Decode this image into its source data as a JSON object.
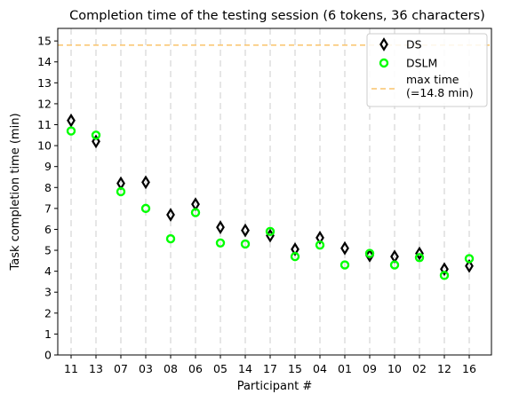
{
  "chart_data": {
    "type": "scatter",
    "title": "Completion time of the testing session (6 tokens, 36 characters)",
    "xlabel": "Participant #",
    "ylabel": "Task completion time (min)",
    "categories": [
      "11",
      "13",
      "07",
      "03",
      "08",
      "06",
      "05",
      "14",
      "17",
      "15",
      "04",
      "01",
      "09",
      "10",
      "02",
      "12",
      "16"
    ],
    "ylim": [
      0,
      15.6
    ],
    "yticks": [
      0,
      1,
      2,
      3,
      4,
      5,
      6,
      7,
      8,
      9,
      10,
      11,
      12,
      13,
      14,
      15
    ],
    "series": [
      {
        "name": "DS",
        "marker": "thin-diamond",
        "color": "#000000",
        "values": [
          11.2,
          10.2,
          8.2,
          8.25,
          6.7,
          7.2,
          6.1,
          5.95,
          5.7,
          5.05,
          5.6,
          5.1,
          4.75,
          4.7,
          4.85,
          4.1,
          4.25
        ]
      },
      {
        "name": "DSLM",
        "marker": "circle",
        "color": "#00ff00",
        "values": [
          10.7,
          10.5,
          7.8,
          7.0,
          5.55,
          6.8,
          5.35,
          5.3,
          5.9,
          4.7,
          5.25,
          4.3,
          4.85,
          4.3,
          4.65,
          3.8,
          4.6
        ]
      }
    ],
    "reference_line": {
      "label": "max time\n(=14.8 min)",
      "value": 14.8,
      "color": "#f9c36b",
      "style": "dashed"
    },
    "vertical_gridlines": true,
    "legend_position": "top-right"
  }
}
